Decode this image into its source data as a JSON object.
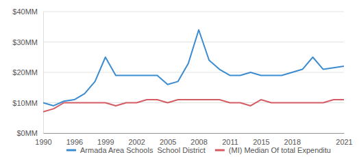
{
  "chart_data": {
    "type": "line",
    "categories": [
      "1990",
      null,
      null,
      "1996",
      null,
      null,
      "1999",
      null,
      null,
      "2002",
      null,
      null,
      "2005",
      null,
      null,
      "2008",
      null,
      null,
      "2011",
      null,
      null,
      "2015",
      null,
      null,
      "2018",
      null,
      null,
      null,
      null,
      "2021"
    ],
    "series": [
      {
        "name": "Armada Area Schools  School District",
        "color": "#3a8bd1",
        "values": [
          10,
          9,
          10.5,
          11,
          13,
          17,
          25,
          19,
          19,
          19,
          19,
          19,
          16,
          17,
          23,
          34,
          24,
          21,
          19,
          19,
          20,
          19,
          19,
          19,
          20,
          21,
          25,
          21,
          21.5,
          22
        ]
      },
      {
        "name": "(MI) Median Of total Expenditu",
        "color": "#d45b62",
        "values": [
          7,
          8,
          10,
          10,
          10,
          10,
          10,
          9,
          10,
          10,
          11,
          11,
          10,
          11,
          11,
          11,
          11,
          11,
          10,
          10,
          9,
          11,
          10,
          10,
          10,
          10,
          10,
          10,
          11,
          11
        ]
      }
    ],
    "ylim": [
      0,
      40
    ],
    "yticks": [
      {
        "value": 0,
        "label": "$0MM"
      },
      {
        "value": 10,
        "label": "$10MM"
      },
      {
        "value": 20,
        "label": "$20MM"
      },
      {
        "value": 30,
        "label": "$30MM"
      },
      {
        "value": 40,
        "label": "$40MM"
      }
    ],
    "grid": true,
    "legend": "bottom"
  }
}
